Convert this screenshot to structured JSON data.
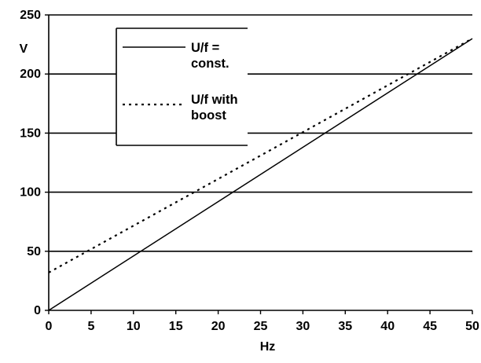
{
  "chart_data": {
    "type": "line",
    "xlabel": "Hz",
    "ylabel": "V",
    "xlim": [
      0,
      50
    ],
    "ylim": [
      0,
      250
    ],
    "xticks": [
      0,
      5,
      10,
      15,
      20,
      25,
      30,
      35,
      40,
      45,
      50
    ],
    "yticks": [
      0,
      50,
      100,
      150,
      200,
      250
    ],
    "grid": "horizontal",
    "legend_position": "upper-left",
    "series": [
      {
        "name": "U/f = const.",
        "legend_lines": [
          "U/f =",
          "const."
        ],
        "style": "solid",
        "color": "#000000",
        "x": [
          0,
          50
        ],
        "y": [
          0,
          230
        ]
      },
      {
        "name": "U/f with boost",
        "legend_lines": [
          "U/f with",
          "boost"
        ],
        "style": "dotted",
        "color": "#000000",
        "x": [
          0,
          50
        ],
        "y": [
          32,
          230
        ]
      }
    ]
  }
}
